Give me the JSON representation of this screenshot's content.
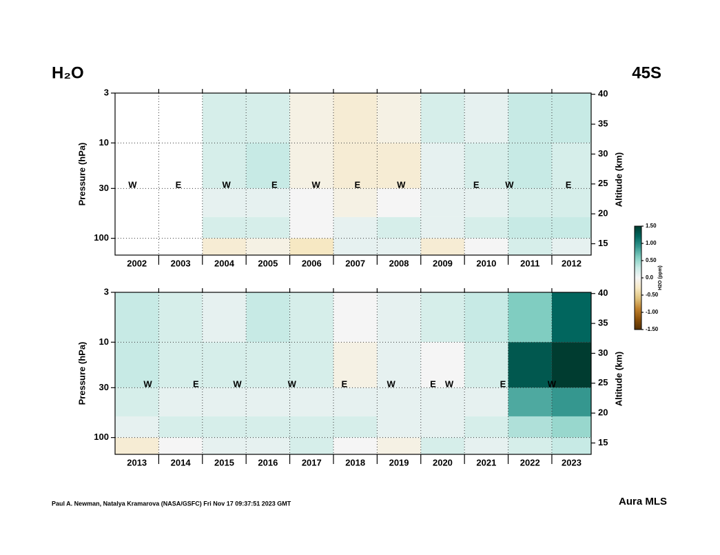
{
  "title": "H₂O",
  "region": "45S",
  "footer_left": "Paul A. Newman, Natalya Kramarova (NASA/GSFC) Fri Nov 17 09:37:51 2023 GMT",
  "footer_right": "Aura MLS",
  "colorbar": {
    "label": "H2O (ppm)",
    "zlim": [
      -1.5,
      1.5
    ],
    "colors": [
      "#543005",
      "#8c510a",
      "#bf812d",
      "#dfc27d",
      "#f6e8c3",
      "#f5f5f5",
      "#c7eae5",
      "#80cdc1",
      "#35978f",
      "#01665e",
      "#003c30"
    ],
    "ticks": [
      {
        "value": 1.5,
        "label": "1.50"
      },
      {
        "value": 1,
        "label": "1.00"
      },
      {
        "value": 0.5,
        "label": "0.50"
      },
      {
        "value": 0,
        "label": "0.0"
      },
      {
        "value": -0.5,
        "label": "-0.50"
      },
      {
        "value": -1,
        "label": "-1.00"
      },
      {
        "value": -1.5,
        "label": "-1.50"
      }
    ]
  },
  "chart_data": [
    {
      "type": "heatmap",
      "ylabel": "Pressure (hPa)",
      "y2label": "Altitude (km)",
      "xlim": [
        2002,
        2012.9
      ],
      "xticks": [
        2003,
        2004,
        2005,
        2006,
        2007,
        2008,
        2009,
        2010,
        2011,
        2012
      ],
      "categories": [
        "2002",
        "2003",
        "2004",
        "2005",
        "2006",
        "2007",
        "2008",
        "2009",
        "2010",
        "2011",
        "2012"
      ],
      "x_edges": [
        2002,
        2003,
        2004,
        2005,
        2006,
        2007,
        2008,
        2009,
        2010,
        2011,
        2012,
        2013
      ],
      "ylim": [
        150,
        3
      ],
      "log_y": true,
      "yticks": [
        3,
        10,
        30,
        100
      ],
      "grid": true,
      "y2lim": [
        13.1,
        40.2
      ],
      "y2ticks": [
        15,
        20,
        25,
        30,
        35,
        40
      ],
      "y_edges": [
        3,
        10,
        30,
        60,
        100,
        150
      ],
      "z": [
        [
          null,
          null,
          0.2,
          0.2,
          -0.1,
          -0.2,
          -0.1,
          0.2,
          0.1,
          0.3,
          0.3
        ],
        [
          null,
          null,
          0.2,
          0.3,
          -0.1,
          -0.2,
          -0.2,
          0.1,
          0.2,
          0.3,
          0.2
        ],
        [
          null,
          null,
          0.1,
          0.1,
          0,
          -0.1,
          0,
          0.1,
          0.1,
          0.2,
          0.2
        ],
        [
          null,
          null,
          0.2,
          0.2,
          0,
          0.1,
          0.2,
          0.1,
          0.2,
          0.3,
          0.3
        ],
        [
          null,
          null,
          -0.2,
          -0.1,
          -0.3,
          0.1,
          0.1,
          -0.2,
          0,
          0.2,
          0.1
        ]
      ],
      "annotations": [
        {
          "text": "W",
          "x": 2002.4,
          "y": 28
        },
        {
          "text": "E",
          "x": 2003.45,
          "y": 28
        },
        {
          "text": "W",
          "x": 2004.55,
          "y": 28
        },
        {
          "text": "E",
          "x": 2005.65,
          "y": 28
        },
        {
          "text": "W",
          "x": 2006.6,
          "y": 28
        },
        {
          "text": "E",
          "x": 2007.55,
          "y": 28
        },
        {
          "text": "W",
          "x": 2008.55,
          "y": 28
        },
        {
          "text": "E",
          "x": 2010.27,
          "y": 28
        },
        {
          "text": "W",
          "x": 2011.03,
          "y": 28
        },
        {
          "text": "E",
          "x": 2012.38,
          "y": 28
        }
      ]
    },
    {
      "type": "heatmap",
      "ylabel": "Pressure (hPa)",
      "y2label": "Altitude (km)",
      "xlim": [
        2013,
        2023.9
      ],
      "xticks": [
        2014,
        2015,
        2016,
        2017,
        2018,
        2019,
        2020,
        2021,
        2022,
        2023
      ],
      "categories": [
        "2013",
        "2014",
        "2015",
        "2016",
        "2017",
        "2018",
        "2019",
        "2020",
        "2021",
        "2022",
        "2023"
      ],
      "x_edges": [
        2013,
        2014,
        2015,
        2016,
        2017,
        2018,
        2019,
        2020,
        2021,
        2022,
        2023,
        2024
      ],
      "ylim": [
        150,
        3
      ],
      "log_y": true,
      "yticks": [
        3,
        10,
        30,
        100
      ],
      "grid": true,
      "y2lim": [
        13.1,
        40.2
      ],
      "y2ticks": [
        15,
        20,
        25,
        30,
        35,
        40
      ],
      "y_edges": [
        3,
        10,
        30,
        60,
        100,
        150
      ],
      "z": [
        [
          0.3,
          0.2,
          0.1,
          0.3,
          0.2,
          0,
          0.1,
          0.2,
          0.3,
          0.6,
          1.2
        ],
        [
          0.3,
          0.2,
          0.2,
          0.2,
          0.2,
          -0.1,
          0.1,
          0,
          0.2,
          1.3,
          1.5
        ],
        [
          0.2,
          0.1,
          0.1,
          0.1,
          0.1,
          0.1,
          0.1,
          0.1,
          0.1,
          0.8,
          0.9
        ],
        [
          0.1,
          0.2,
          0.2,
          0.2,
          0.2,
          0.2,
          0.1,
          0.1,
          0.2,
          0.4,
          0.5
        ],
        [
          -0.2,
          0,
          0.1,
          0.1,
          0.2,
          0,
          -0.1,
          0.2,
          0.1,
          0.2,
          0.3
        ]
      ],
      "annotations": [
        {
          "text": "W",
          "x": 2013.75,
          "y": 28
        },
        {
          "text": "E",
          "x": 2014.85,
          "y": 28
        },
        {
          "text": "W",
          "x": 2015.8,
          "y": 28
        },
        {
          "text": "W",
          "x": 2017.05,
          "y": 28
        },
        {
          "text": "E",
          "x": 2018.25,
          "y": 28
        },
        {
          "text": "W",
          "x": 2019.32,
          "y": 28
        },
        {
          "text": "E",
          "x": 2020.28,
          "y": 28
        },
        {
          "text": "W",
          "x": 2020.65,
          "y": 28
        },
        {
          "text": "E",
          "x": 2021.88,
          "y": 28
        },
        {
          "text": "W",
          "x": 2023.0,
          "y": 28
        }
      ]
    }
  ]
}
